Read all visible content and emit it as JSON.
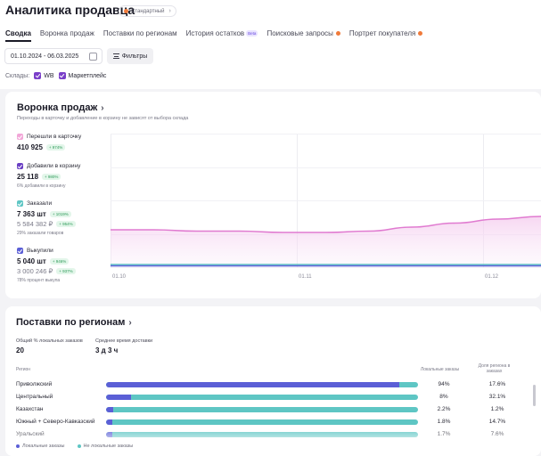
{
  "header": {
    "title": "Аналитика продавца",
    "badge": "Стандартный",
    "badge_chevron": "›",
    "tabs": [
      {
        "label": "Сводка",
        "active": true
      },
      {
        "label": "Воронка продаж"
      },
      {
        "label": "Поставки по регионам"
      },
      {
        "label": "История остатков",
        "badge": "Beta"
      },
      {
        "label": "Поисковые запросы",
        "dot": true
      },
      {
        "label": "Портрет покупателя",
        "dot": true
      }
    ]
  },
  "filters": {
    "date_range": "01.10.2024 - 06.03.2025",
    "filter_button": "Фильтры",
    "warehouses_label": "Склады:",
    "warehouses": [
      "WB",
      "Маркетплейс"
    ]
  },
  "funnel": {
    "title": "Воронка продаж",
    "chevron": "›",
    "subtitle": "Переходы в карточку и добавление в корзину не зависят от выбора склада",
    "metrics": [
      {
        "label": "Перешли в карточку",
        "value": "410 925",
        "change": "+ 974%",
        "color": "#f2a6d8"
      },
      {
        "label": "Добавили в корзину",
        "value": "25 118",
        "change": "+ 980%",
        "note": "6% добавили в корзину",
        "color": "#6a3fc4"
      },
      {
        "label": "Заказали",
        "value": "7 363 шт",
        "change": "+ 1019%",
        "value2": "5 584 382 ₽",
        "change2": "+ 954%",
        "note": "29% заказали товаров",
        "color": "#5ec6c4"
      },
      {
        "label": "Выкупили",
        "value": "5 040 шт",
        "change": "+ 946%",
        "value2": "3 000 246 ₽",
        "change2": "+ 937%",
        "note": "78% процент выкупа",
        "color": "#5b5fd6"
      }
    ]
  },
  "chart_data": {
    "type": "line",
    "x_ticks": [
      "01.10",
      "01.11",
      "01.12"
    ],
    "series": [
      {
        "color": "#e07ad0",
        "values": [
          0.28,
          0.28,
          0.27,
          0.27,
          0.26,
          0.26,
          0.27,
          0.3,
          0.33,
          0.36,
          0.38
        ]
      },
      {
        "color": "#5ec6c4",
        "values": [
          0.02,
          0.02,
          0.02,
          0.02,
          0.02,
          0.02,
          0.02,
          0.02,
          0.02,
          0.02,
          0.02
        ]
      },
      {
        "color": "#5b5fd6",
        "values": [
          0.01,
          0.01,
          0.01,
          0.01,
          0.01,
          0.01,
          0.01,
          0.01,
          0.01,
          0.01,
          0.01
        ]
      }
    ],
    "grid": true
  },
  "regions": {
    "title": "Поставки по регионам",
    "chevron": "›",
    "local_share_label": "Общий % локальных заказов",
    "local_share_value": "20",
    "avg_delivery_label": "Среднее время доставки",
    "avg_delivery_value": "3 д 3 ч",
    "col_region": "Регион",
    "col_local": "Локальные заказы",
    "col_share": "Доля региона в заказах",
    "rows": [
      {
        "name": "Приволжский",
        "local": "94%",
        "share": "17.6%",
        "local_fraction": 0.94
      },
      {
        "name": "Центральный",
        "local": "8%",
        "share": "32.1%",
        "local_fraction": 0.08
      },
      {
        "name": "Казахстан",
        "local": "2.2%",
        "share": "1.2%",
        "local_fraction": 0.022
      },
      {
        "name": "Южный + Северо-Кавказский",
        "local": "1.8%",
        "share": "14.7%",
        "local_fraction": 0.018
      },
      {
        "name": "Уральский",
        "local": "1.7%",
        "share": "7.6%",
        "local_fraction": 0.017
      }
    ],
    "legend": [
      {
        "label": "Локальные заказы",
        "color": "#5b5fd6"
      },
      {
        "label": "Не локальные заказы",
        "color": "#5ec6c4"
      }
    ]
  }
}
